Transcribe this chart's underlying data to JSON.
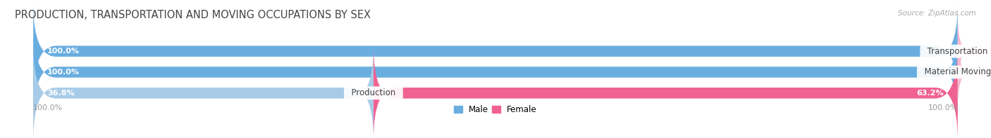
{
  "title": "PRODUCTION, TRANSPORTATION AND MOVING OCCUPATIONS BY SEX",
  "source": "Source: ZipAtlas.com",
  "categories": [
    "Transportation",
    "Material Moving",
    "Production"
  ],
  "male_values": [
    100.0,
    100.0,
    36.8
  ],
  "female_values": [
    0.0,
    0.0,
    63.2
  ],
  "male_color_strong": "#6aaee0",
  "male_color_light": "#a8cce8",
  "female_color_strong": "#f06292",
  "female_color_light": "#f9b8cf",
  "bar_bg_color": "#ebebeb",
  "title_fontsize": 10.5,
  "source_fontsize": 7.5,
  "cat_label_fontsize": 8.5,
  "val_label_fontsize": 8,
  "axis_label_fontsize": 8,
  "axis_label_left": "100.0%",
  "axis_label_right": "100.0%",
  "legend_male": "Male",
  "legend_female": "Female"
}
